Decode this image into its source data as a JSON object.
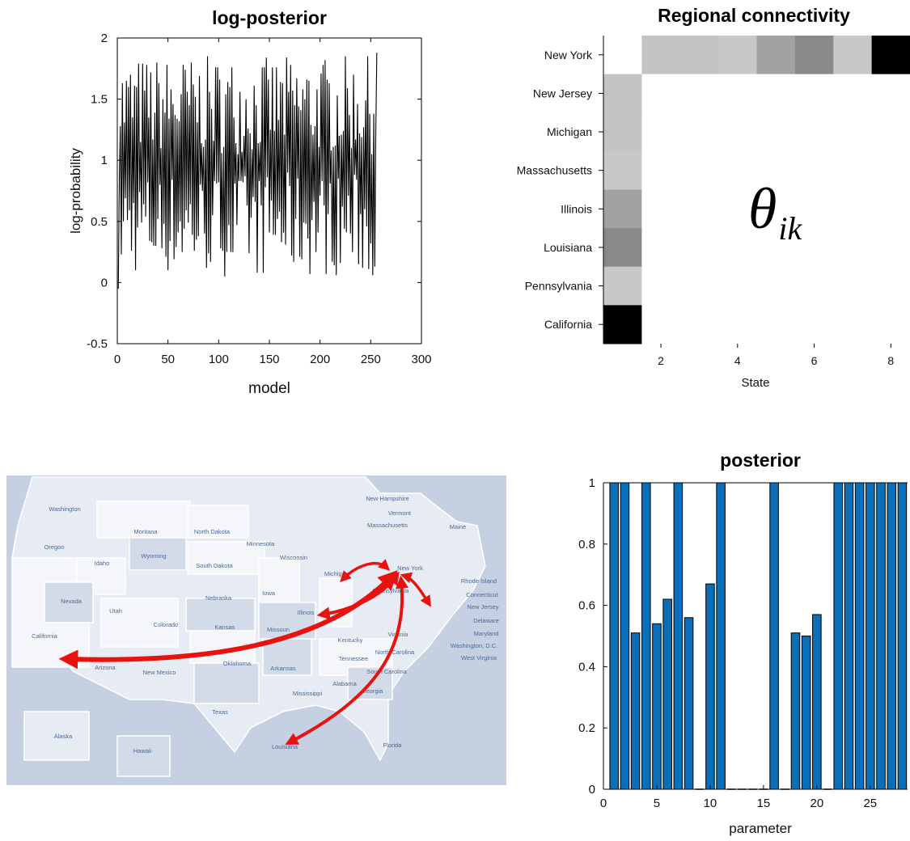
{
  "colors": {
    "line": "#000000",
    "bar_fill": "#0a6fb8",
    "bar_edge": "#000000",
    "arrow": "#e8130f",
    "map_bg": "#c5d0e3",
    "map_land": "#e6ebf4",
    "map_land_light": "#f4f6fa",
    "map_land_dark": "#d3dbe9",
    "map_border": "#ffffff",
    "map_label": "#4b6a96"
  },
  "chart_data": [
    {
      "type": "line",
      "title": "log-posterior",
      "xlabel": "model",
      "ylabel": "log-probability",
      "xlim": [
        0,
        300
      ],
      "ylim": [
        -0.5,
        2
      ],
      "xticks": [
        "0",
        "50",
        "100",
        "150",
        "200",
        "250",
        "300"
      ],
      "yticks": [
        "-0.5",
        "0",
        "0.5",
        "1",
        "1.5",
        "2"
      ],
      "grid": false,
      "legend": "none",
      "n_points": 256,
      "value_pattern": "oscillating between about 0 and 1.9",
      "series": [
        {
          "values": []
        }
      ]
    },
    {
      "type": "heatmap",
      "title": "Regional connectivity",
      "xlabel": "State",
      "ylabel": "",
      "xlim": [
        0.5,
        8.5
      ],
      "xticks": [
        "2",
        "4",
        "6",
        "8"
      ],
      "rows": [
        "New York",
        "New Jersey",
        "Michigan",
        "Massachusetts",
        "Illinois",
        "Louisiana",
        "Pennsylvania",
        "California"
      ],
      "colormap": "gray (darker = higher)",
      "row1_values": [
        null,
        0.22,
        0.22,
        0.2,
        0.35,
        0.45,
        0.2,
        1.0
      ],
      "col1_values": [
        null,
        0.22,
        0.22,
        0.2,
        0.35,
        0.45,
        0.2,
        1.0
      ],
      "annotation": "θ_ik",
      "annotation_main": "θ",
      "annotation_sub": "ik"
    },
    {
      "type": "bar",
      "title": "posterior",
      "xlabel": "parameter",
      "ylabel": "",
      "xlim": [
        0,
        28.5
      ],
      "ylim": [
        0,
        1
      ],
      "xticks": [
        "0",
        "5",
        "10",
        "15",
        "20",
        "25"
      ],
      "yticks": [
        "0",
        "0.2",
        "0.4",
        "0.6",
        "0.8",
        "1"
      ],
      "grid": false,
      "legend": "none",
      "categories": [
        1,
        2,
        3,
        4,
        5,
        6,
        7,
        8,
        9,
        10,
        11,
        12,
        13,
        14,
        15,
        16,
        17,
        18,
        19,
        20,
        21,
        22,
        23,
        24,
        25,
        26,
        27,
        28
      ],
      "values": [
        1,
        1,
        0.51,
        1,
        0.54,
        0.62,
        1,
        0.56,
        0,
        0.67,
        1,
        0,
        0,
        0,
        0,
        1,
        0,
        0.51,
        0.5,
        0.57,
        0,
        1,
        1,
        1,
        1,
        1,
        1,
        1
      ]
    }
  ],
  "map": {
    "labels": [
      "Washington",
      "Oregon",
      "Montana",
      "Idaho",
      "Wyoming",
      "North Dakota",
      "South Dakota",
      "Minnesota",
      "Wisconsin",
      "Nebraska",
      "Iowa",
      "Nevada",
      "Utah",
      "Colorado",
      "Kansas",
      "Missouri",
      "Illinois",
      "California",
      "Arizona",
      "New Mexico",
      "Oklahoma",
      "Arkansas",
      "Texas",
      "Mississippi",
      "Alabama",
      "Georgia",
      "Tennessee",
      "Kentucky",
      "North Carolina",
      "South Carolina",
      "Virginia",
      "Florida",
      "Alaska",
      "Hawaii",
      "Louisiana",
      "Michigan",
      "New York",
      "Pennsylvania",
      "Maine",
      "New Hampshire",
      "Vermont",
      "Massachusetts",
      "Rhode Island",
      "Connecticut",
      "New Jersey",
      "Delaware",
      "Maryland",
      "Washington, D.C.",
      "West Virginia"
    ]
  }
}
